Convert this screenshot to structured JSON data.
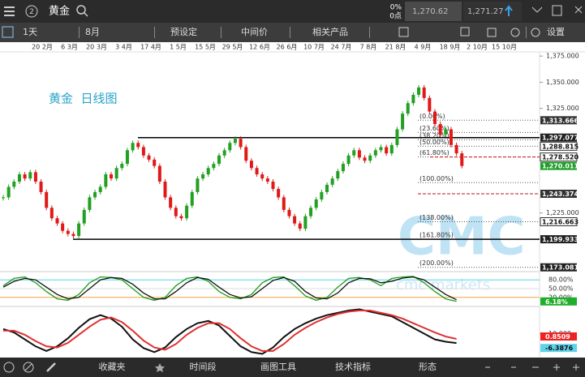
{
  "header": {
    "tab": "2",
    "symbol": "黄金",
    "change_pct": "0%",
    "change_pts": "0点",
    "bid": "1,270.62",
    "ask": "1,271.27"
  },
  "toolbar": {
    "interval": "1天",
    "month": "8月",
    "preset": "预设定",
    "price_type": "中间价",
    "related": "相关产品",
    "settings": "设置"
  },
  "footer": [
    "收藏夹",
    "时间段",
    "画图工具",
    "技术指标",
    "形态"
  ],
  "chart_data": [
    {
      "type": "candlestick",
      "title": "黄金  日线图",
      "watermark": "CMC",
      "watermark_sub": "cmc markets",
      "x_labels": [
        "20 2月",
        "6 3月",
        "20 3月",
        "3 4月",
        "17 4月",
        "1 5月",
        "15 5月",
        "29 5月",
        "12 6月",
        "26 6月",
        "10 7月",
        "24 7月",
        "7 8月",
        "21 8月",
        "4 9月",
        "18 9月",
        "2 10月",
        "15 10月"
      ],
      "closes": [
        1240,
        1250,
        1255,
        1262,
        1258,
        1264,
        1255,
        1245,
        1230,
        1220,
        1215,
        1208,
        1205,
        1203,
        1215,
        1228,
        1240,
        1245,
        1250,
        1262,
        1258,
        1268,
        1272,
        1285,
        1292,
        1288,
        1280,
        1276,
        1270,
        1255,
        1240,
        1230,
        1222,
        1220,
        1232,
        1245,
        1258,
        1262,
        1268,
        1272,
        1280,
        1285,
        1292,
        1296,
        1288,
        1275,
        1268,
        1262,
        1258,
        1255,
        1248,
        1240,
        1228,
        1222,
        1215,
        1210,
        1222,
        1230,
        1238,
        1245,
        1252,
        1258,
        1265,
        1272,
        1280,
        1285,
        1278,
        1275,
        1280,
        1285,
        1288,
        1282,
        1290,
        1305,
        1320,
        1330,
        1338,
        1345,
        1335,
        1322,
        1310,
        1300,
        1305,
        1290,
        1282,
        1270
      ],
      "colors": {
        "up": "#22a022",
        "down": "#e01818"
      },
      "ylim": [
        1169,
        1379
      ],
      "yticks": [
        {
          "value": 1375,
          "label": "1,375.000"
        },
        {
          "value": 1350,
          "label": "1,350.000"
        },
        {
          "value": 1325,
          "label": "1,325.000"
        },
        {
          "value": 1225,
          "label": "1,225.000"
        }
      ],
      "fib_levels": [
        {
          "value": 1313.666,
          "label": "(0.00%)"
        },
        {
          "value": 1302,
          "label": "(23.60%)"
        },
        {
          "value": 1295,
          "label": "(38.20%)"
        },
        {
          "value": 1288.815,
          "label": "(50.00%)"
        },
        {
          "value": 1278.52,
          "label": "(61.80%)"
        },
        {
          "value": 1254,
          "label": "(100.00%)"
        },
        {
          "value": 1216.663,
          "label": "(138.00%)"
        },
        {
          "value": 1199.933,
          "label": "(161.80%)"
        },
        {
          "value": 1173.081,
          "label": "(200.00%)"
        }
      ],
      "price_labels": [
        {
          "value": 1313.666,
          "label": "1,313.666",
          "color": "#333333"
        },
        {
          "value": 1297.077,
          "label": "1,297.077",
          "color": "#222222"
        },
        {
          "value": 1288.815,
          "label": "1,288.815",
          "color": "#ffffff"
        },
        {
          "value": 1278.52,
          "label": "1,278.520",
          "color": "#ffffff"
        },
        {
          "value": 1270.011,
          "label": "1,270.011",
          "color": "#1f9e2a"
        },
        {
          "value": 1243.374,
          "label": "1,243.374",
          "color": "#333333"
        },
        {
          "value": 1216.663,
          "label": "1,216.663",
          "color": "#ffffff"
        },
        {
          "value": 1199.933,
          "label": "1,199.933",
          "color": "#222222"
        },
        {
          "value": 1173.081,
          "label": "1,173.081",
          "color": "#222222"
        }
      ]
    },
    {
      "type": "line",
      "ylim": [
        0,
        100
      ],
      "yticks": [
        {
          "value": 80,
          "label": "80.00%"
        },
        {
          "value": 50,
          "label": "50.00%"
        },
        {
          "value": 20,
          "label": "20.00%"
        }
      ],
      "grid_colors": [
        "#5fd3ea",
        "#dddddd",
        "#f3a640"
      ],
      "series": [
        {
          "color": "#1a9e1a",
          "badge": "#1fae2a",
          "last_label": "6.18%",
          "values": [
            60,
            85,
            90,
            70,
            40,
            15,
            10,
            30,
            70,
            90,
            88,
            80,
            50,
            20,
            10,
            20,
            60,
            85,
            90,
            75,
            40,
            20,
            15,
            30,
            70,
            88,
            90,
            60,
            25,
            10,
            20,
            55,
            85,
            88,
            80,
            60,
            85,
            90,
            92,
            70,
            40,
            15,
            6.18
          ]
        },
        {
          "color": "#111111",
          "values": [
            55,
            75,
            85,
            80,
            55,
            30,
            15,
            20,
            50,
            80,
            88,
            85,
            65,
            35,
            15,
            15,
            40,
            70,
            88,
            82,
            55,
            30,
            18,
            22,
            50,
            78,
            88,
            75,
            40,
            18,
            15,
            35,
            70,
            85,
            84,
            70,
            75,
            86,
            90,
            80,
            55,
            30,
            12
          ]
        }
      ]
    },
    {
      "type": "line",
      "ylim": [
        -30,
        57
      ],
      "yticks": [
        {
          "value": 10,
          "label": "10.000"
        }
      ],
      "series": [
        {
          "color": "#111111",
          "badge": "#5fd3ea",
          "values": [
            18,
            12,
            0,
            -12,
            -20,
            -12,
            2,
            20,
            35,
            42,
            36,
            22,
            0,
            -15,
            -22,
            -14,
            4,
            18,
            28,
            32,
            24,
            6,
            -12,
            -22,
            -25,
            -14,
            4,
            18,
            28,
            36,
            42,
            46,
            50,
            52,
            48,
            44,
            40,
            30,
            20,
            10,
            0,
            -4,
            -6.3876
          ]
        },
        {
          "color": "#e03030",
          "badge": "#ee2222",
          "values": [
            15,
            15,
            8,
            -3,
            -12,
            -14,
            -6,
            8,
            22,
            34,
            38,
            30,
            15,
            -2,
            -14,
            -18,
            -8,
            8,
            20,
            28,
            28,
            18,
            2,
            -12,
            -20,
            -20,
            -8,
            8,
            20,
            30,
            38,
            44,
            48,
            50,
            50,
            46,
            42,
            36,
            28,
            20,
            12,
            5,
            0.8509
          ]
        }
      ]
    }
  ]
}
